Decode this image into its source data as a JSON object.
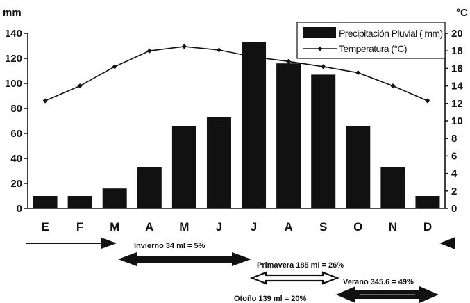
{
  "chart_data": {
    "type": "bar",
    "categories": [
      "E",
      "F",
      "M",
      "A",
      "M",
      "J",
      "J",
      "A",
      "S",
      "O",
      "N",
      "D"
    ],
    "series": [
      {
        "name": "Precipitación Pluvial ( mm)",
        "kind": "bar",
        "axis": "left",
        "values": [
          10,
          10,
          16,
          33,
          66,
          73,
          133,
          116,
          107,
          66,
          33,
          10
        ]
      },
      {
        "name": "Temperatura (°C)",
        "kind": "line",
        "axis": "right",
        "values": [
          12.3,
          14,
          16.2,
          18,
          18.5,
          18.1,
          17.3,
          16.8,
          16.2,
          15.5,
          14,
          12.3
        ]
      }
    ],
    "ylabel": "mm",
    "y2label": "°C",
    "ylim": [
      0,
      140
    ],
    "y2lim": [
      0,
      20
    ],
    "yticks": [
      "0",
      "20",
      "40",
      "60",
      "80",
      "100",
      "120",
      "140"
    ],
    "y2ticks": [
      "0",
      "2",
      "4",
      "6",
      "8",
      "10",
      "12",
      "14",
      "16",
      "18",
      "20"
    ],
    "legend_position": "top-right",
    "grid": false
  },
  "seasons": [
    {
      "label": "Invierno 34 ml = 5%",
      "from": "D",
      "to": "M"
    },
    {
      "label": "Primavera 188 ml = 26%",
      "from": "M",
      "to": "J"
    },
    {
      "label": "Verano 345.6 = 49%",
      "from": "J",
      "to": "S"
    },
    {
      "label": "Otoño 139 ml = 20%",
      "from": "S",
      "to": "D"
    }
  ],
  "colors": {
    "bar": "#111111",
    "line": "#111111",
    "axis": "#111111",
    "background": "#ffffff"
  }
}
